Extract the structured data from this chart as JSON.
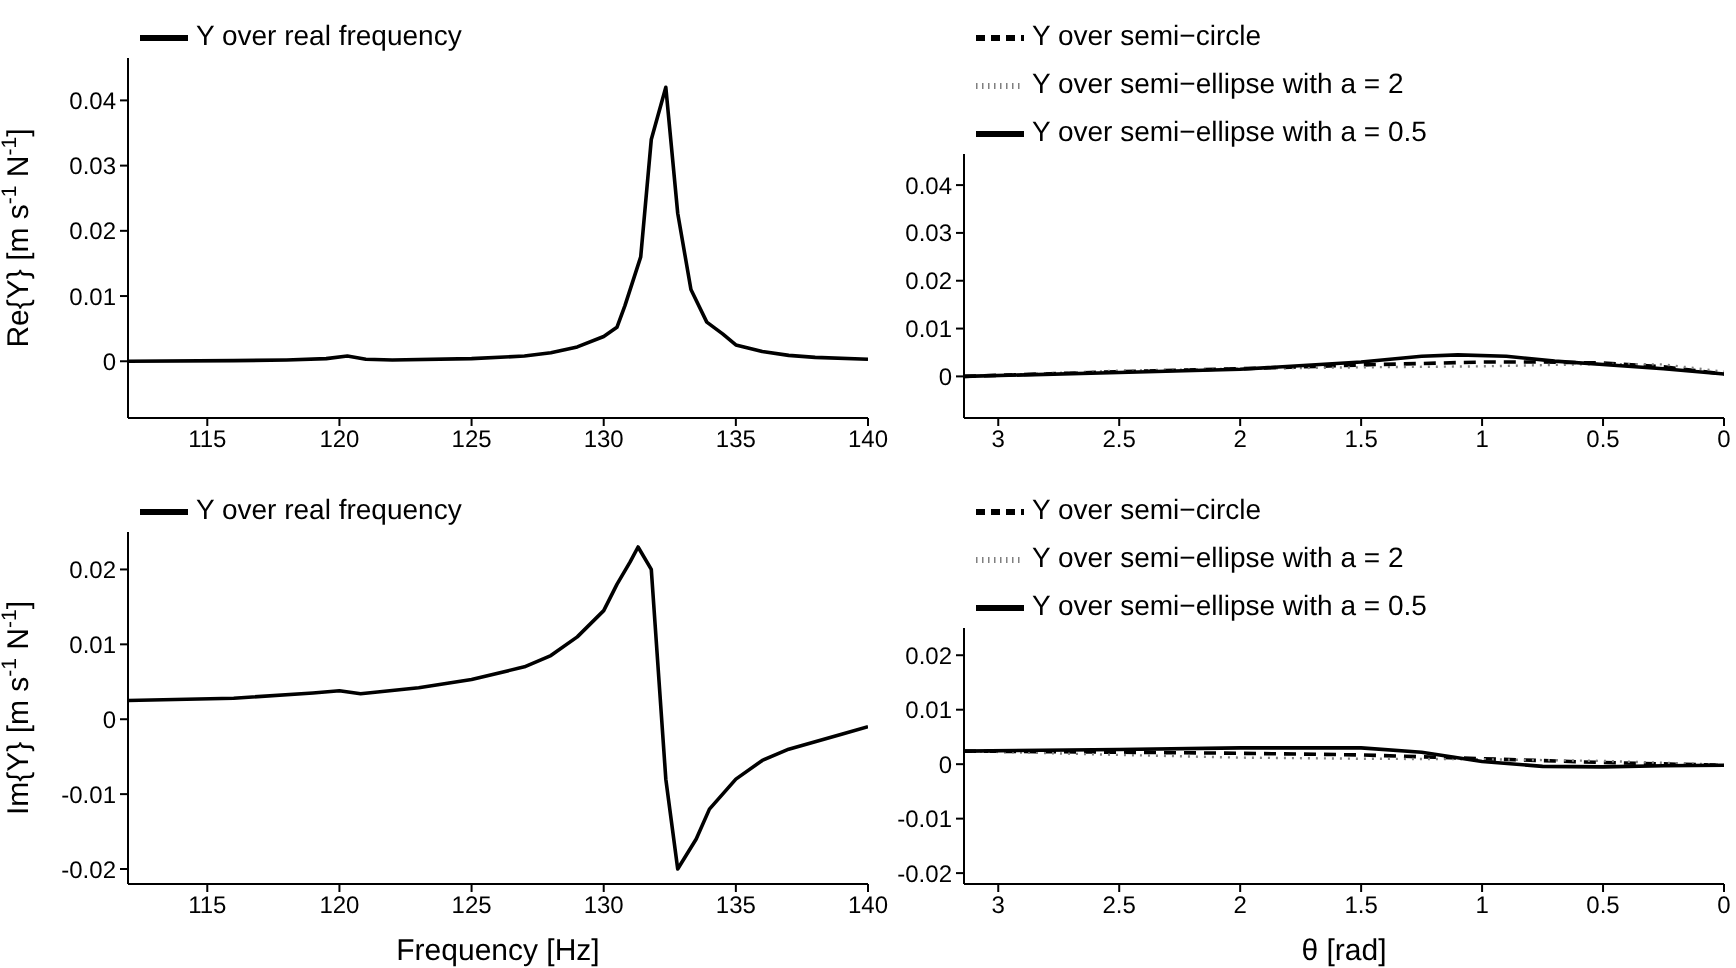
{
  "chart_data": [
    {
      "type": "line",
      "ylabel": "Re{Y} [m s$^{-1}$ N$^{-1}$]",
      "xlim": [
        112,
        140
      ],
      "ylim": [
        -0.0087,
        0.0465
      ],
      "xticks": [
        115,
        120,
        125,
        130,
        135,
        140
      ],
      "yticks": [
        0,
        0.01,
        0.02,
        0.03,
        0.04
      ],
      "legend": "top left",
      "grid": false,
      "series": [
        {
          "name": "Y over real frequency",
          "color": "#000000",
          "line_style": "solid",
          "x": [
            112,
            116,
            118,
            119.5,
            120.3,
            121,
            122,
            125,
            127,
            128,
            129,
            130,
            130.5,
            130.8,
            131.4,
            131.8,
            132.35,
            132.8,
            133.3,
            133.9,
            134.5,
            135,
            136,
            137,
            138,
            140
          ],
          "values": [
            0,
            0.0001,
            0.0002,
            0.0004,
            0.0008,
            0.0003,
            0.0002,
            0.0004,
            0.0008,
            0.0013,
            0.0022,
            0.0038,
            0.0052,
            0.0085,
            0.016,
            0.034,
            0.042,
            0.0227,
            0.011,
            0.006,
            0.0042,
            0.0025,
            0.0015,
            0.0009,
            0.0006,
            0.0003
          ]
        }
      ]
    },
    {
      "type": "line",
      "xlim": [
        3.1416,
        0
      ],
      "ylim": [
        -0.0087,
        0.0465
      ],
      "xticks": [
        3,
        2.5,
        2,
        1.5,
        1,
        0.5,
        0
      ],
      "yticks": [
        0,
        0.01,
        0.02,
        0.03,
        0.04
      ],
      "legend": "top left",
      "grid": false,
      "series": [
        {
          "name": "Y over semi−circle",
          "color": "#000000",
          "line_style": "dashed",
          "x": [
            3.1416,
            2.5,
            2,
            1.5,
            1,
            0.75,
            0.5,
            0.25,
            0
          ],
          "values": [
            0,
            0.001,
            0.0016,
            0.0024,
            0.003,
            0.003,
            0.0028,
            0.002,
            0.0005
          ]
        },
        {
          "name": "Y over semi−ellipse with a = 2",
          "color": "#808080",
          "line_style": "dotted",
          "x": [
            3.1416,
            2.5,
            2,
            1.5,
            1,
            0.5,
            0.25,
            0
          ],
          "values": [
            0,
            0.0012,
            0.0016,
            0.0019,
            0.0021,
            0.0026,
            0.0025,
            0.001
          ]
        },
        {
          "name": "Y over semi−ellipse with a = 0.5",
          "color": "#000000",
          "line_style": "solid",
          "x": [
            3.1416,
            2.5,
            2,
            1.5,
            1.25,
            1.1,
            0.9,
            0.7,
            0.5,
            0.25,
            0
          ],
          "values": [
            0,
            0.0008,
            0.0015,
            0.003,
            0.0042,
            0.0045,
            0.0042,
            0.0032,
            0.0025,
            0.0016,
            0.0005
          ]
        }
      ]
    },
    {
      "type": "line",
      "xlabel": "Frequency [Hz]",
      "ylabel": "Im{Y} [m s$^{-1}$ N$^{-1}$]",
      "xlim": [
        112,
        140
      ],
      "ylim": [
        -0.022,
        0.025
      ],
      "xticks": [
        115,
        120,
        125,
        130,
        135,
        140
      ],
      "yticks": [
        -0.02,
        -0.01,
        0,
        0.01,
        0.02
      ],
      "legend": "top left",
      "grid": false,
      "series": [
        {
          "name": "Y over real frequency",
          "color": "#000000",
          "line_style": "solid",
          "x": [
            112,
            116,
            119,
            120,
            120.8,
            123,
            125,
            127,
            128,
            129,
            130,
            130.5,
            131,
            131.3,
            131.8,
            132.35,
            132.8,
            133.5,
            134,
            135,
            136,
            137,
            138,
            139,
            140
          ],
          "values": [
            0.0025,
            0.0028,
            0.0035,
            0.0038,
            0.0034,
            0.0042,
            0.0053,
            0.007,
            0.0085,
            0.011,
            0.0145,
            0.018,
            0.021,
            0.023,
            0.02,
            -0.008,
            -0.02,
            -0.016,
            -0.012,
            -0.008,
            -0.0055,
            -0.004,
            -0.003,
            -0.002,
            -0.001
          ]
        }
      ]
    },
    {
      "type": "line",
      "xlabel": "θ [rad]",
      "xlim": [
        3.1416,
        0
      ],
      "ylim": [
        -0.022,
        0.025
      ],
      "xticks": [
        3,
        2.5,
        2,
        1.5,
        1,
        0.5,
        0
      ],
      "yticks": [
        -0.02,
        -0.01,
        0,
        0.01,
        0.02
      ],
      "legend": "top left",
      "grid": false,
      "series": [
        {
          "name": "Y over semi−circle",
          "color": "#000000",
          "line_style": "dashed",
          "x": [
            3.1416,
            2.5,
            2,
            1.5,
            1,
            0.5,
            0
          ],
          "values": [
            0.0024,
            0.0022,
            0.002,
            0.0017,
            0.001,
            0.0003,
            -0.0002
          ]
        },
        {
          "name": "Y over semi−ellipse with a = 2",
          "color": "#808080",
          "line_style": "dotted",
          "x": [
            3.1416,
            2.5,
            2,
            1.5,
            1,
            0.5,
            0
          ],
          "values": [
            0.0024,
            0.0017,
            0.0012,
            0.001,
            0.0009,
            0.0006,
            -0.0001
          ]
        },
        {
          "name": "Y over semi−ellipse with a = 0.5",
          "color": "#000000",
          "line_style": "solid",
          "x": [
            3.1416,
            2.5,
            2,
            1.5,
            1.25,
            1,
            0.75,
            0.5,
            0.25,
            0
          ],
          "values": [
            0.0024,
            0.0027,
            0.003,
            0.003,
            0.0022,
            0.0005,
            -0.0004,
            -0.0005,
            -0.0003,
            -0.0002
          ]
        }
      ]
    }
  ]
}
